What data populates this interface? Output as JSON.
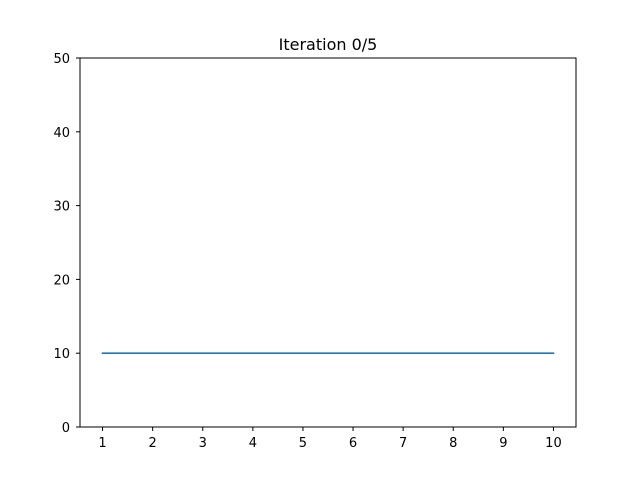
{
  "chart_data": {
    "type": "line",
    "title": "Iteration 0/5",
    "xlabel": "",
    "ylabel": "",
    "x": [
      1,
      2,
      3,
      4,
      5,
      6,
      7,
      8,
      9,
      10
    ],
    "series": [
      {
        "values": [
          10,
          10,
          10,
          10,
          10,
          10,
          10,
          10,
          10,
          10
        ],
        "color": "#1f77b4"
      }
    ],
    "xticks": [
      1,
      2,
      3,
      4,
      5,
      6,
      7,
      8,
      9,
      10
    ],
    "xtick_labels": [
      "1",
      "2",
      "3",
      "4",
      "5",
      "6",
      "7",
      "8",
      "9",
      "10"
    ],
    "yticks": [
      0,
      10,
      20,
      30,
      40,
      50
    ],
    "ytick_labels": [
      "0",
      "10",
      "20",
      "30",
      "40",
      "50"
    ],
    "xlim": [
      0.55,
      10.45
    ],
    "ylim": [
      0,
      50
    ],
    "grid": false,
    "legend": false
  }
}
